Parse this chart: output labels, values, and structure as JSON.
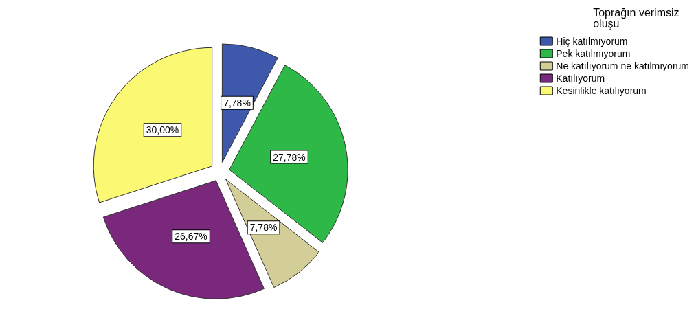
{
  "chart_data": {
    "type": "pie",
    "legend_title": "Toprağın verimsiz oluşu",
    "categories": [
      "Hiç katılmıyorum",
      "Pek katılmıyorum",
      "Ne katılıyorum ne katılmıyorum",
      "Katılıyorum",
      "Kesinlikle katılıyorum"
    ],
    "values": [
      7.78,
      27.78,
      7.78,
      26.67,
      30.0
    ],
    "value_labels": [
      "7,78%",
      "27,78%",
      "7,78%",
      "26,67%",
      "30,00%"
    ],
    "colors": [
      "#3e58ac",
      "#2eb848",
      "#d3ce97",
      "#79287c",
      "#fbf873"
    ],
    "legend": "top right"
  }
}
